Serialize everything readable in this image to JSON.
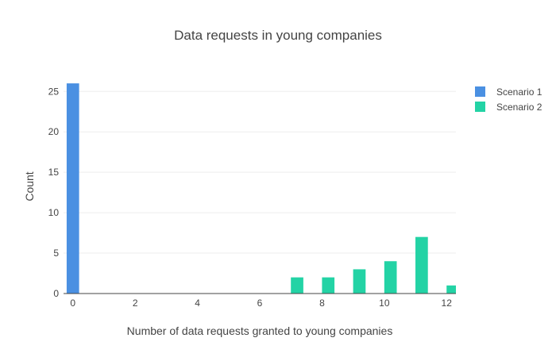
{
  "chart_data": {
    "type": "bar",
    "title": "Data requests in young companies",
    "xlabel": "Number of data requests granted to young companies",
    "ylabel": "Count",
    "xlim": [
      -0.3,
      12.3
    ],
    "ylim": [
      0,
      26.5
    ],
    "x_ticks": [
      0,
      2,
      4,
      6,
      8,
      10,
      12
    ],
    "y_ticks": [
      0,
      5,
      10,
      15,
      20,
      25
    ],
    "bar_width": 0.4,
    "grid": true,
    "legend_position": "top-right",
    "series": [
      {
        "name": "Scenario 1",
        "color": "#4a90e2",
        "x": [
          0
        ],
        "values": [
          26
        ]
      },
      {
        "name": "Scenario 2",
        "color": "#23d3a5",
        "x": [
          7.2,
          8.2,
          9.2,
          10.2,
          11.2,
          12.2
        ],
        "values": [
          2,
          2,
          3,
          4,
          7,
          1
        ]
      }
    ]
  }
}
